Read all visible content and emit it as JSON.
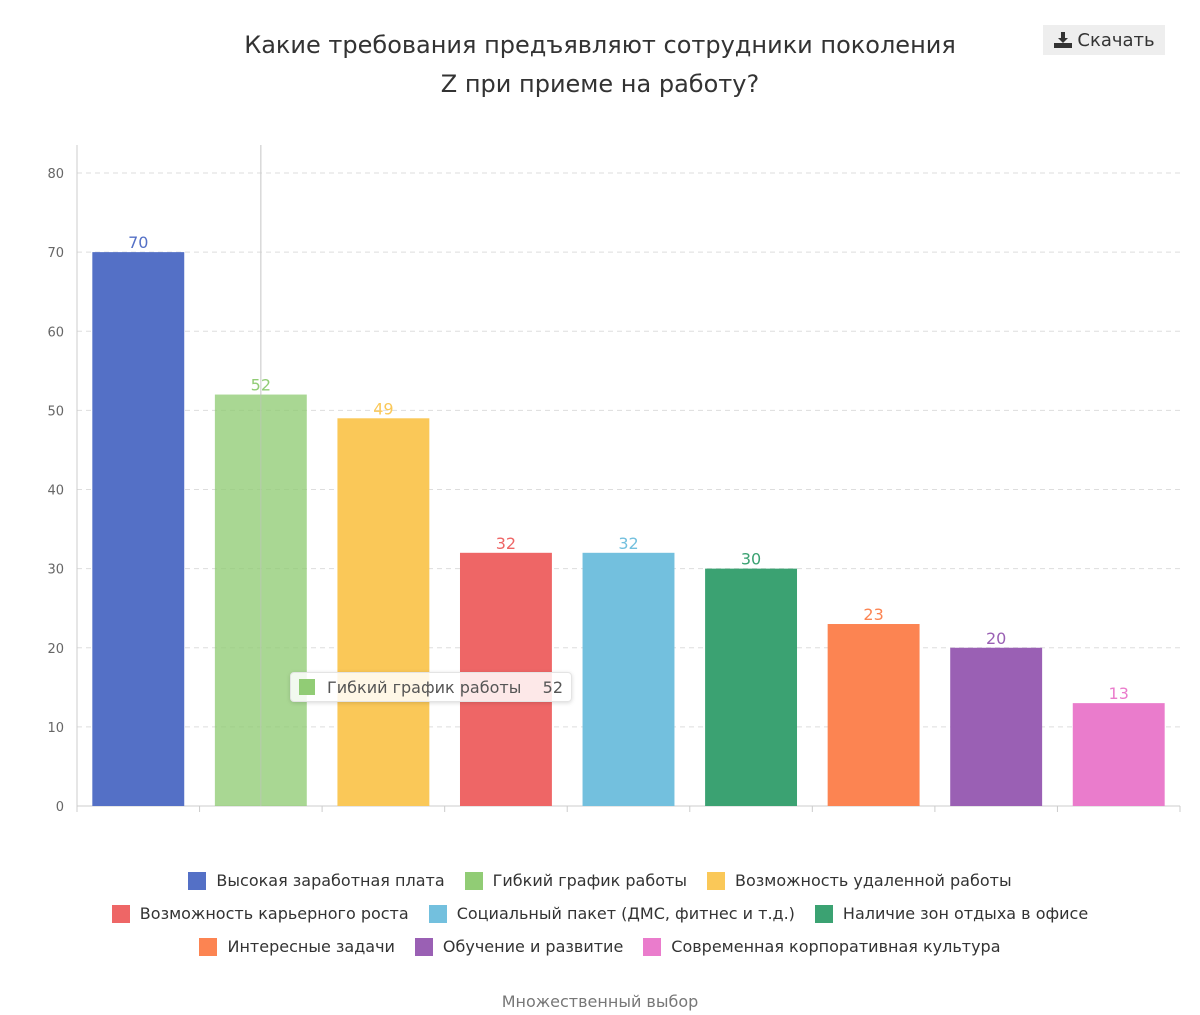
{
  "header": {
    "title_line1": "Какие требования предъявляют сотрудники поколения",
    "title_line2": "Z при приеме на работу?",
    "download_label": "Скачать",
    "download_icon": "download-icon"
  },
  "chart_data": {
    "type": "bar",
    "title": "Какие требования предъявляют сотрудники поколения Z при приеме на работу?",
    "categories": [
      "Высокая заработная плата",
      "Гибкий график работы",
      "Возможность удаленной работы",
      "Возможность карьерного роста",
      "Социальный пакет (ДМС, фитнес и т.д.)",
      "Наличие зон отдыха в офисе",
      "Интересные задачи",
      "Обучение и развитие",
      "Современная корпоративная культура"
    ],
    "values": [
      70,
      52,
      49,
      32,
      32,
      30,
      23,
      20,
      13
    ],
    "colors": [
      "#5470c6",
      "#91cc75",
      "#fac858",
      "#ee6666",
      "#73c0de",
      "#3ba272",
      "#fc8452",
      "#9a60b4",
      "#ea7ccc"
    ],
    "ylim": [
      0,
      80
    ],
    "yticks": [
      "0",
      "10",
      "20",
      "30",
      "40",
      "50",
      "60",
      "70",
      "80"
    ],
    "grid": true,
    "legend_position": "bottom",
    "highlighted_index": 1
  },
  "tooltip": {
    "label": "Гибкий график работы",
    "value": "52",
    "color": "#91cc75"
  },
  "footer": "Множественный выбор"
}
